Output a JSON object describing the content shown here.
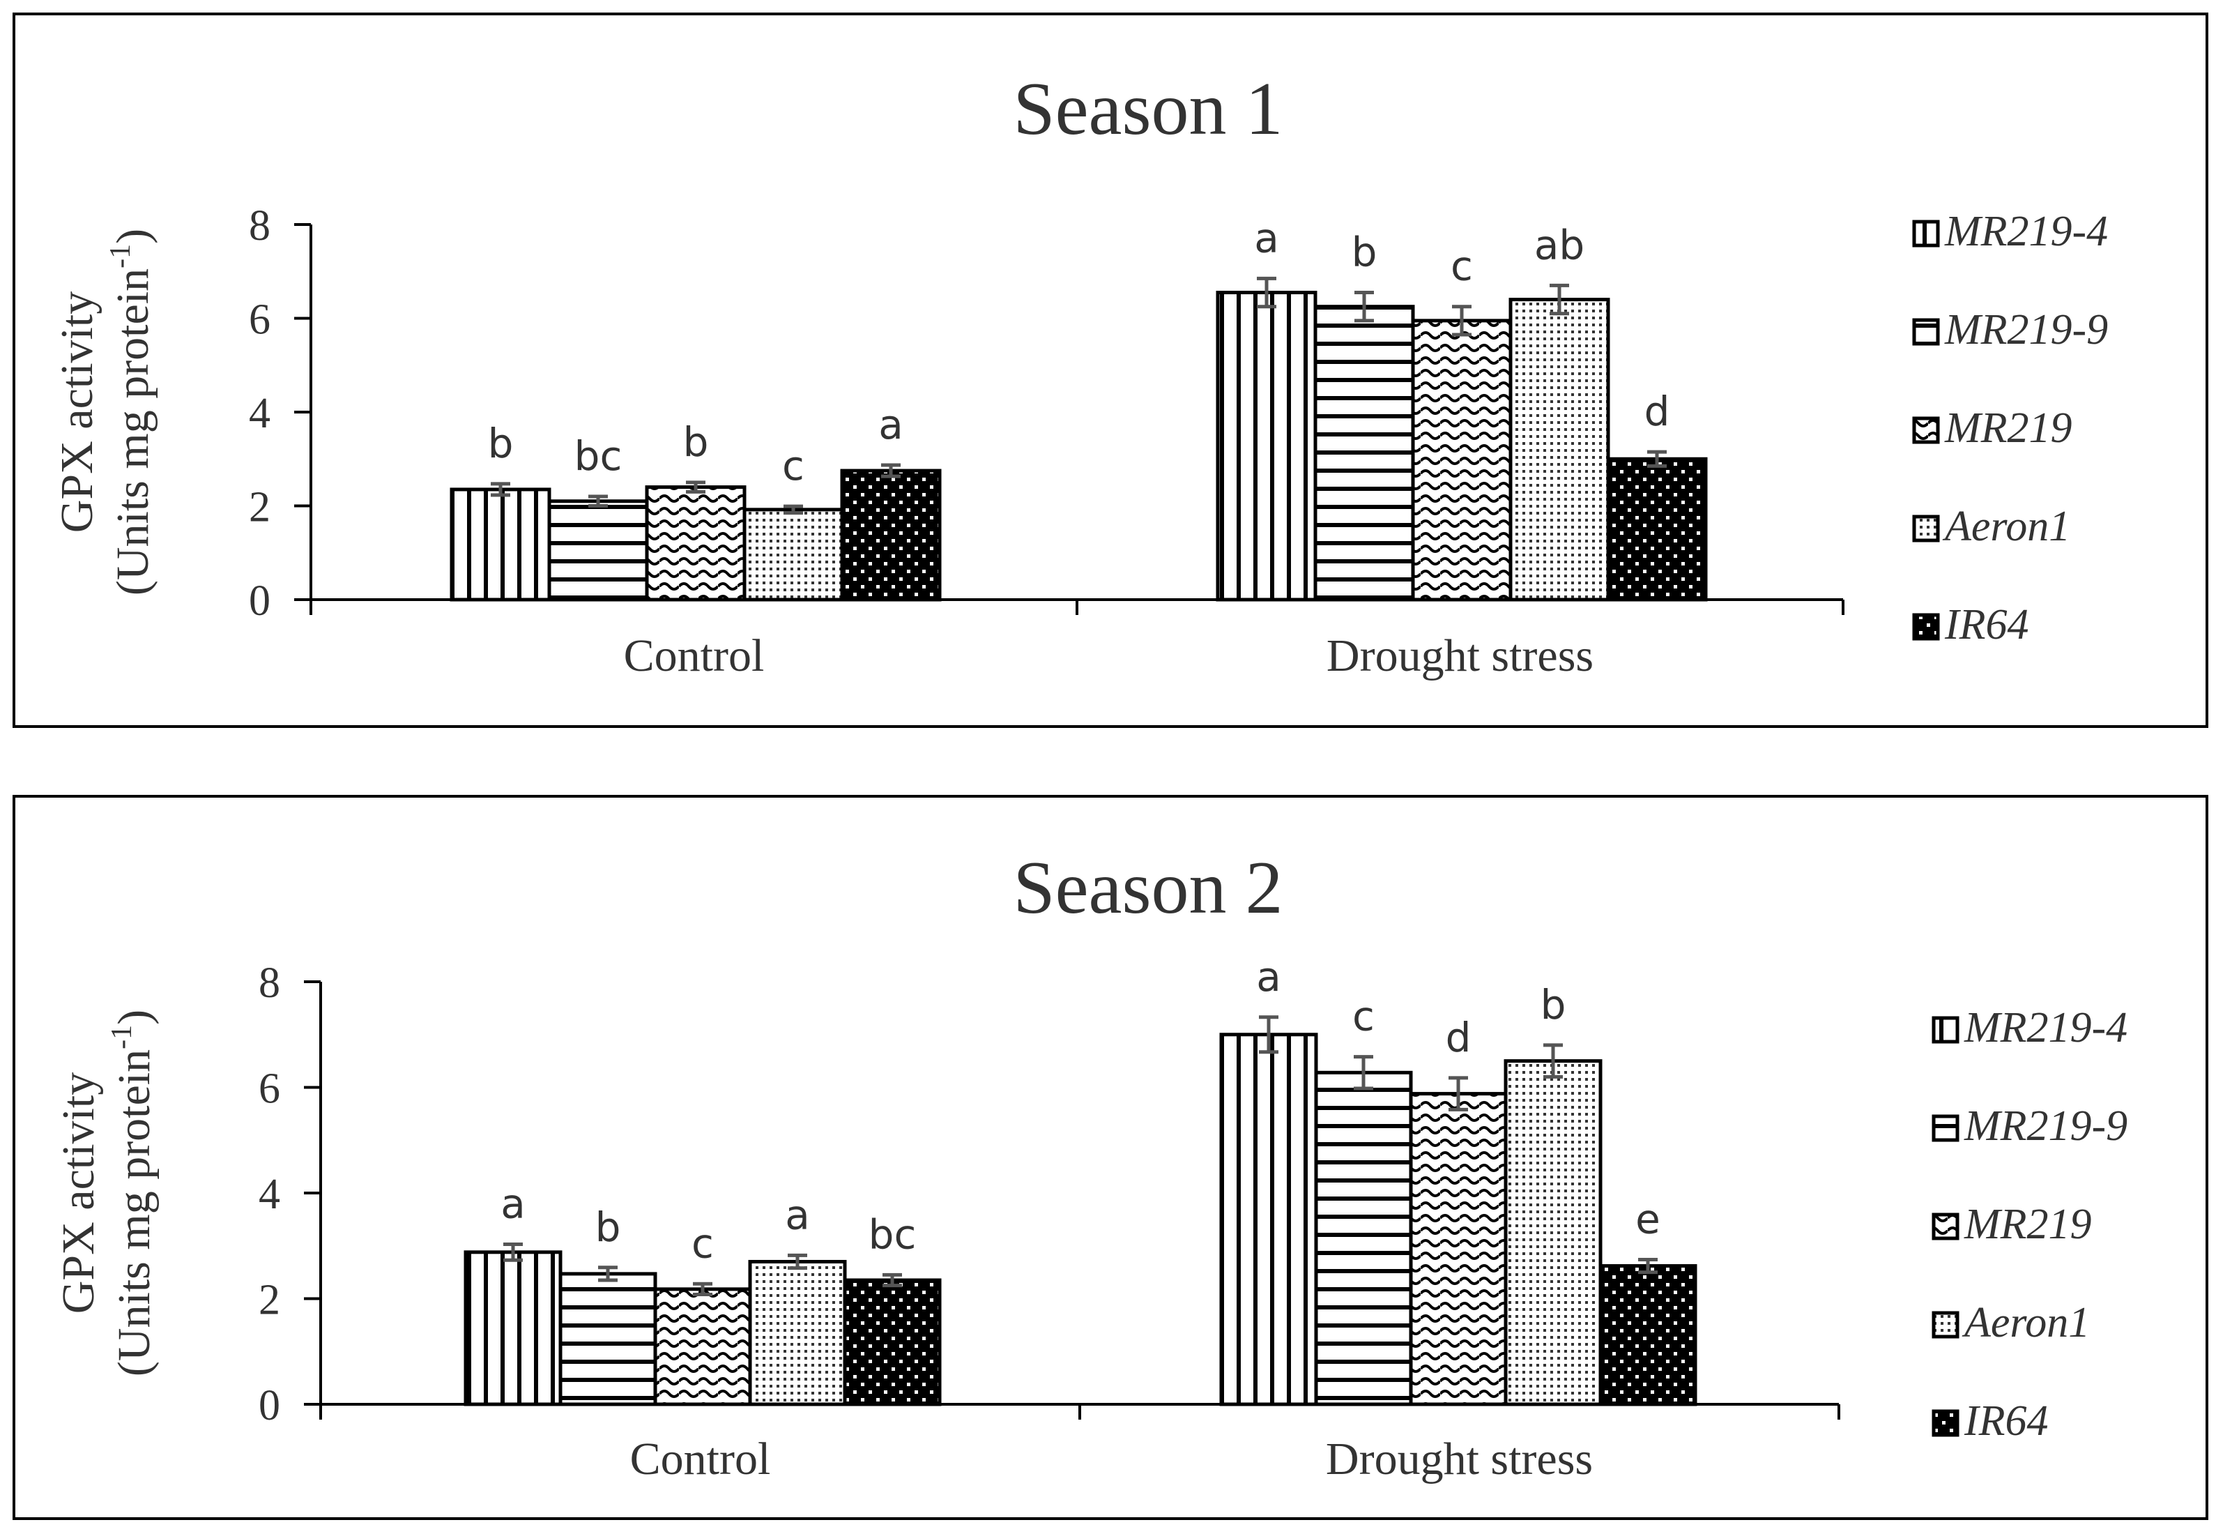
{
  "chart_data": [
    {
      "type": "bar",
      "title": "Season 1",
      "ylabel_line1": "GPX activity",
      "ylabel_line2_main": "(Units mg protein",
      "ylabel_line2_sup": "-1",
      "ylabel_line2_end": ")",
      "xlabel": "",
      "ylim": [
        0,
        8
      ],
      "yticks": [
        "0",
        "2",
        "4",
        "6",
        "8"
      ],
      "categories": [
        "Control",
        "Drought stress"
      ],
      "series": [
        {
          "name": "MR219-4",
          "pattern": "vertical",
          "values": [
            2.35,
            6.55
          ],
          "errors": [
            0.12,
            0.3
          ],
          "letters": [
            "b",
            "a"
          ]
        },
        {
          "name": "MR219-9",
          "pattern": "horizontal",
          "values": [
            2.1,
            6.25
          ],
          "errors": [
            0.1,
            0.3
          ],
          "letters": [
            "bc",
            "b"
          ]
        },
        {
          "name": "MR219",
          "pattern": "wave",
          "values": [
            2.4,
            5.95
          ],
          "errors": [
            0.1,
            0.3
          ],
          "letters": [
            "b",
            "c"
          ]
        },
        {
          "name": "Aeron1",
          "pattern": "dots-fine",
          "values": [
            1.92,
            6.4
          ],
          "errors": [
            0.07,
            0.3
          ],
          "letters": [
            "c",
            "ab"
          ]
        },
        {
          "name": "IR64",
          "pattern": "dots-black",
          "values": [
            2.75,
            3.0
          ],
          "errors": [
            0.12,
            0.15
          ],
          "letters": [
            "a",
            "d"
          ]
        }
      ],
      "legend": [
        "MR219-4",
        "MR219-9",
        "MR219",
        "Aeron1",
        "IR64"
      ],
      "legend_position": "right"
    },
    {
      "type": "bar",
      "title": "Season 2",
      "ylabel_line1": "GPX activity",
      "ylabel_line2_main": "(Units mg protein",
      "ylabel_line2_sup": "-1",
      "ylabel_line2_end": ")",
      "xlabel": "",
      "ylim": [
        0,
        8
      ],
      "yticks": [
        "0",
        "2",
        "4",
        "6",
        "8"
      ],
      "categories": [
        "Control",
        "Drought stress"
      ],
      "series": [
        {
          "name": "MR219-4",
          "pattern": "vertical",
          "values": [
            2.88,
            7.0
          ],
          "errors": [
            0.15,
            0.33
          ],
          "letters": [
            "a",
            "a"
          ]
        },
        {
          "name": "MR219-9",
          "pattern": "horizontal",
          "values": [
            2.47,
            6.28
          ],
          "errors": [
            0.12,
            0.3
          ],
          "letters": [
            "b",
            "c"
          ]
        },
        {
          "name": "MR219",
          "pattern": "wave",
          "values": [
            2.18,
            5.88
          ],
          "errors": [
            0.1,
            0.3
          ],
          "letters": [
            "c",
            "d"
          ]
        },
        {
          "name": "Aeron1",
          "pattern": "dots-fine",
          "values": [
            2.7,
            6.5
          ],
          "errors": [
            0.12,
            0.3
          ],
          "letters": [
            "a",
            "b"
          ]
        },
        {
          "name": "IR64",
          "pattern": "dots-black",
          "values": [
            2.35,
            2.62
          ],
          "errors": [
            0.1,
            0.12
          ],
          "letters": [
            "bc",
            "e"
          ]
        }
      ],
      "legend": [
        "MR219-4",
        "MR219-9",
        "MR219",
        "Aeron1",
        "IR64"
      ],
      "legend_position": "right"
    }
  ]
}
